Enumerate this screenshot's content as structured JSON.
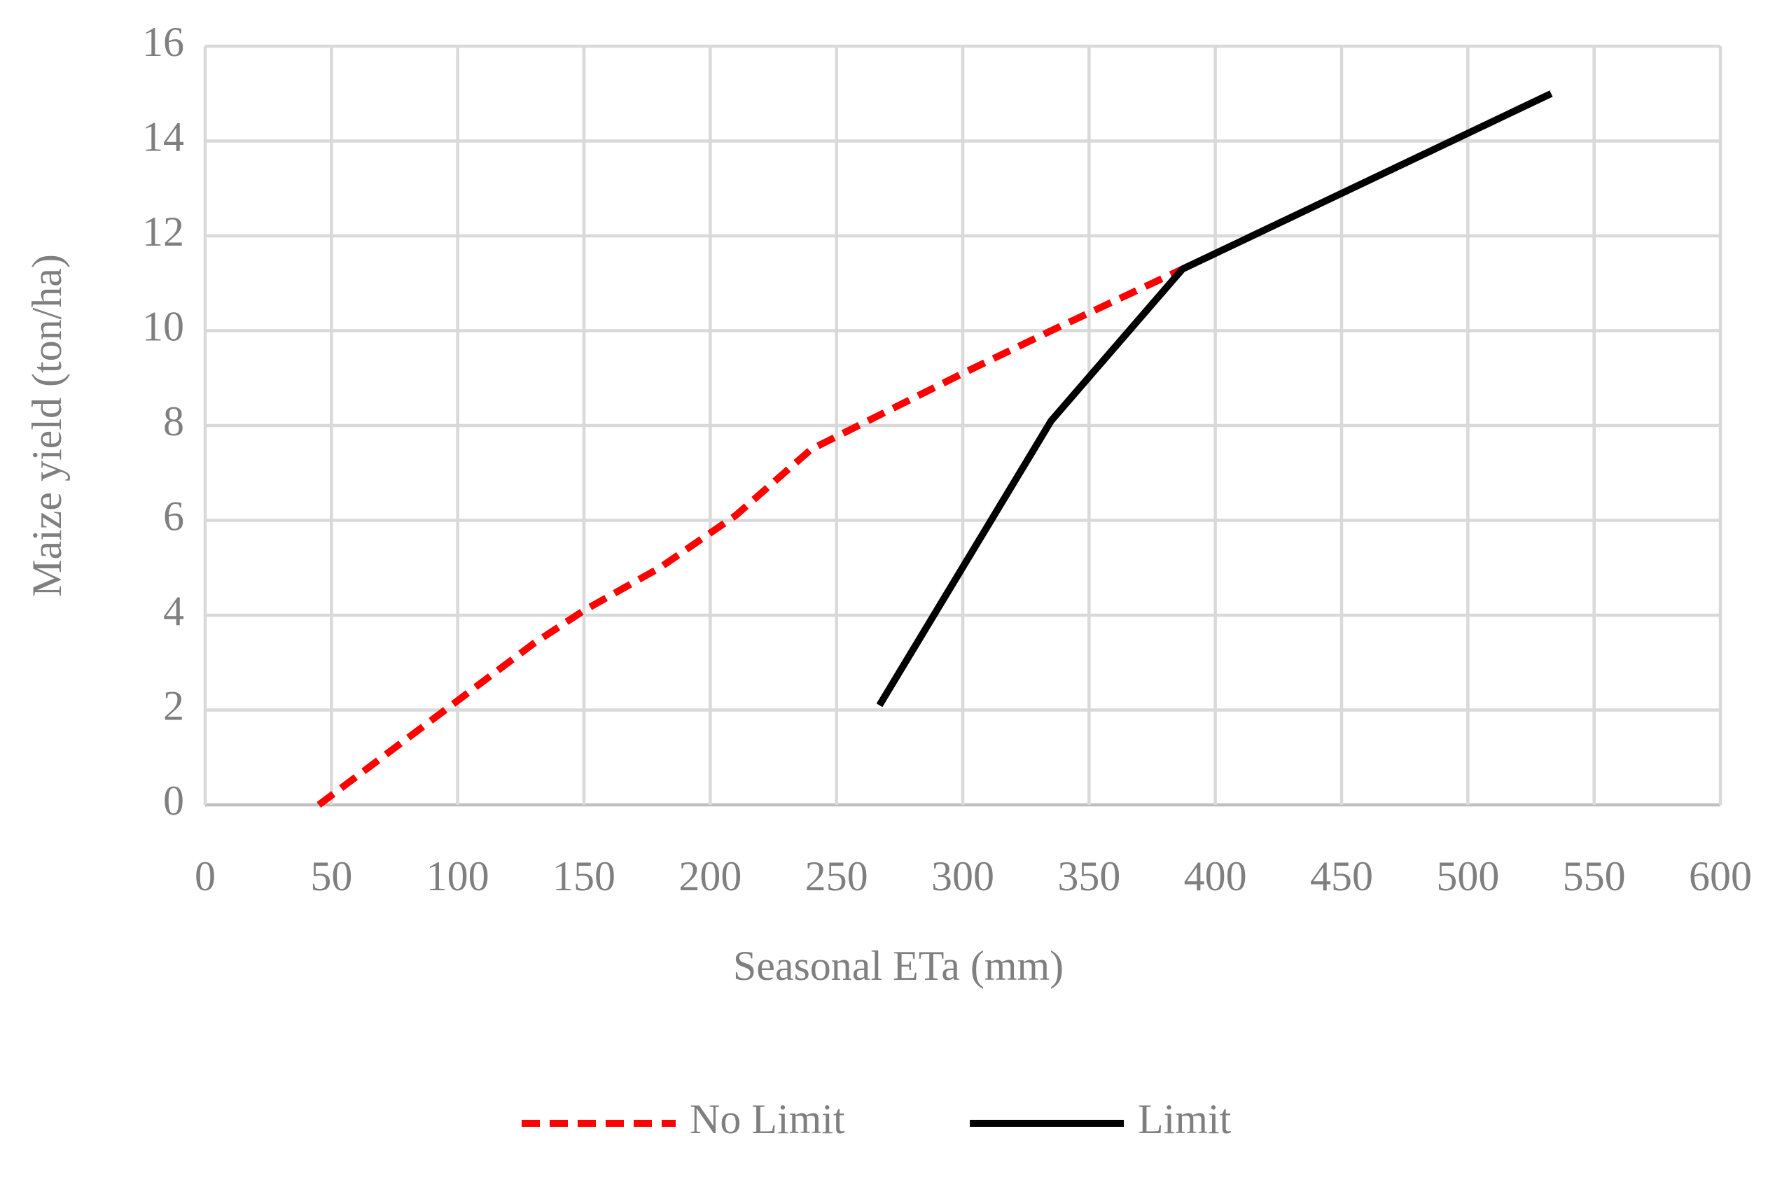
{
  "chart_data": {
    "type": "line",
    "x_label": "Seasonal ETa (mm)",
    "y_label": "Maize yield (ton/ha)",
    "series": [
      {
        "name": "No Limit",
        "color": "#ff0000",
        "dashed": true,
        "x": [
          45,
          100,
          130,
          150,
          180,
          210,
          240,
          270,
          300,
          335,
          387
        ],
        "values": [
          0,
          2.2,
          3.4,
          4.1,
          5.0,
          6.1,
          7.5,
          8.3,
          9.1,
          10.0,
          11.3
        ]
      },
      {
        "name": "Limit",
        "color": "#000000",
        "dashed": false,
        "x": [
          267,
          335,
          387,
          533
        ],
        "values": [
          2.1,
          8.1,
          11.3,
          15.0
        ]
      }
    ],
    "xlim": [
      0,
      600
    ],
    "xticks": [
      0,
      50,
      100,
      150,
      200,
      250,
      300,
      350,
      400,
      450,
      500,
      550,
      600
    ],
    "ylim": [
      0,
      16
    ],
    "yticks": [
      0,
      2,
      4,
      6,
      8,
      10,
      12,
      14,
      16
    ],
    "grid": true,
    "legend": "bottom"
  }
}
